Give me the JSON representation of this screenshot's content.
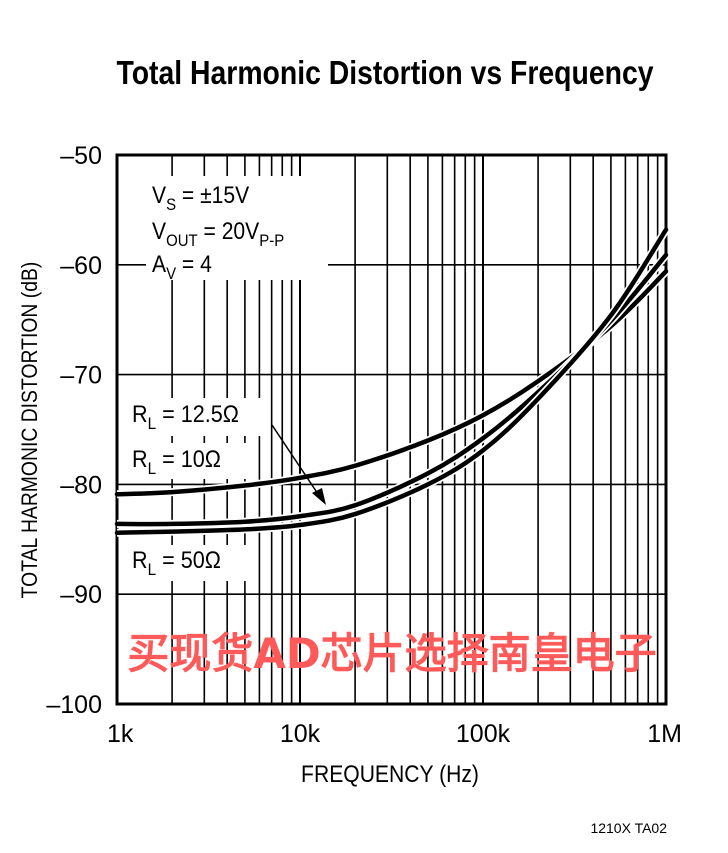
{
  "chart_data": {
    "type": "line",
    "title": "Total Harmonic Distortion vs Frequency",
    "xlabel": "FREQUENCY (Hz)",
    "ylabel": "TOTAL HARMONIC DISTORTION (dB)",
    "xscale": "log",
    "xlim": [
      1000,
      1000000
    ],
    "ylim": [
      -100,
      -50
    ],
    "grid": true,
    "xticks": [
      {
        "v": 1000,
        "label": "1k"
      },
      {
        "v": 10000,
        "label": "10k"
      },
      {
        "v": 100000,
        "label": "100k"
      },
      {
        "v": 1000000,
        "label": "1M"
      }
    ],
    "yticks": [
      {
        "v": -50,
        "label": "–50"
      },
      {
        "v": -60,
        "label": "–60"
      },
      {
        "v": -70,
        "label": "–70"
      },
      {
        "v": -80,
        "label": "–80"
      },
      {
        "v": -90,
        "label": "–90"
      },
      {
        "v": -100,
        "label": "–100"
      }
    ],
    "conditions": {
      "vs": "V",
      "vs_sub": "S",
      "vs_val": " = ±15V",
      "vout": "V",
      "vout_sub": "OUT",
      "vout_val": " = 20V",
      "vout_sub2": "P-P",
      "av": "A",
      "av_sub": "V",
      "av_val": " = 4"
    },
    "series": [
      {
        "name": "RL = 10Ω",
        "label_main": "R",
        "label_sub": "L",
        "label_val": " = 10Ω",
        "x": [
          1000,
          2000,
          5000,
          10000,
          20000,
          50000,
          100000,
          200000,
          500000,
          1000000
        ],
        "y": [
          -80.9,
          -80.7,
          -80.1,
          -79.4,
          -78.3,
          -76.0,
          -73.7,
          -70.6,
          -65.6,
          -60.6
        ]
      },
      {
        "name": "RL = 12.5Ω",
        "label_main": "R",
        "label_sub": "L",
        "label_val": " = 12.5Ω",
        "x": [
          1000,
          2000,
          5000,
          10000,
          20000,
          50000,
          100000,
          200000,
          500000,
          1000000
        ],
        "y": [
          -83.6,
          -83.6,
          -83.4,
          -82.9,
          -81.9,
          -79.0,
          -75.8,
          -71.6,
          -65.1,
          -59.1
        ]
      },
      {
        "name": "RL = 50Ω",
        "label_main": "R",
        "label_sub": "L",
        "label_val": " = 50Ω",
        "x": [
          1000,
          2000,
          5000,
          10000,
          20000,
          50000,
          100000,
          200000,
          500000,
          1000000
        ],
        "y": [
          -84.4,
          -84.3,
          -84.1,
          -83.7,
          -82.7,
          -80.0,
          -76.9,
          -72.2,
          -64.6,
          -56.8
        ]
      }
    ],
    "watermark": "买现货AD芯片选择南皇电子",
    "figure_id": "1210X TA02"
  }
}
